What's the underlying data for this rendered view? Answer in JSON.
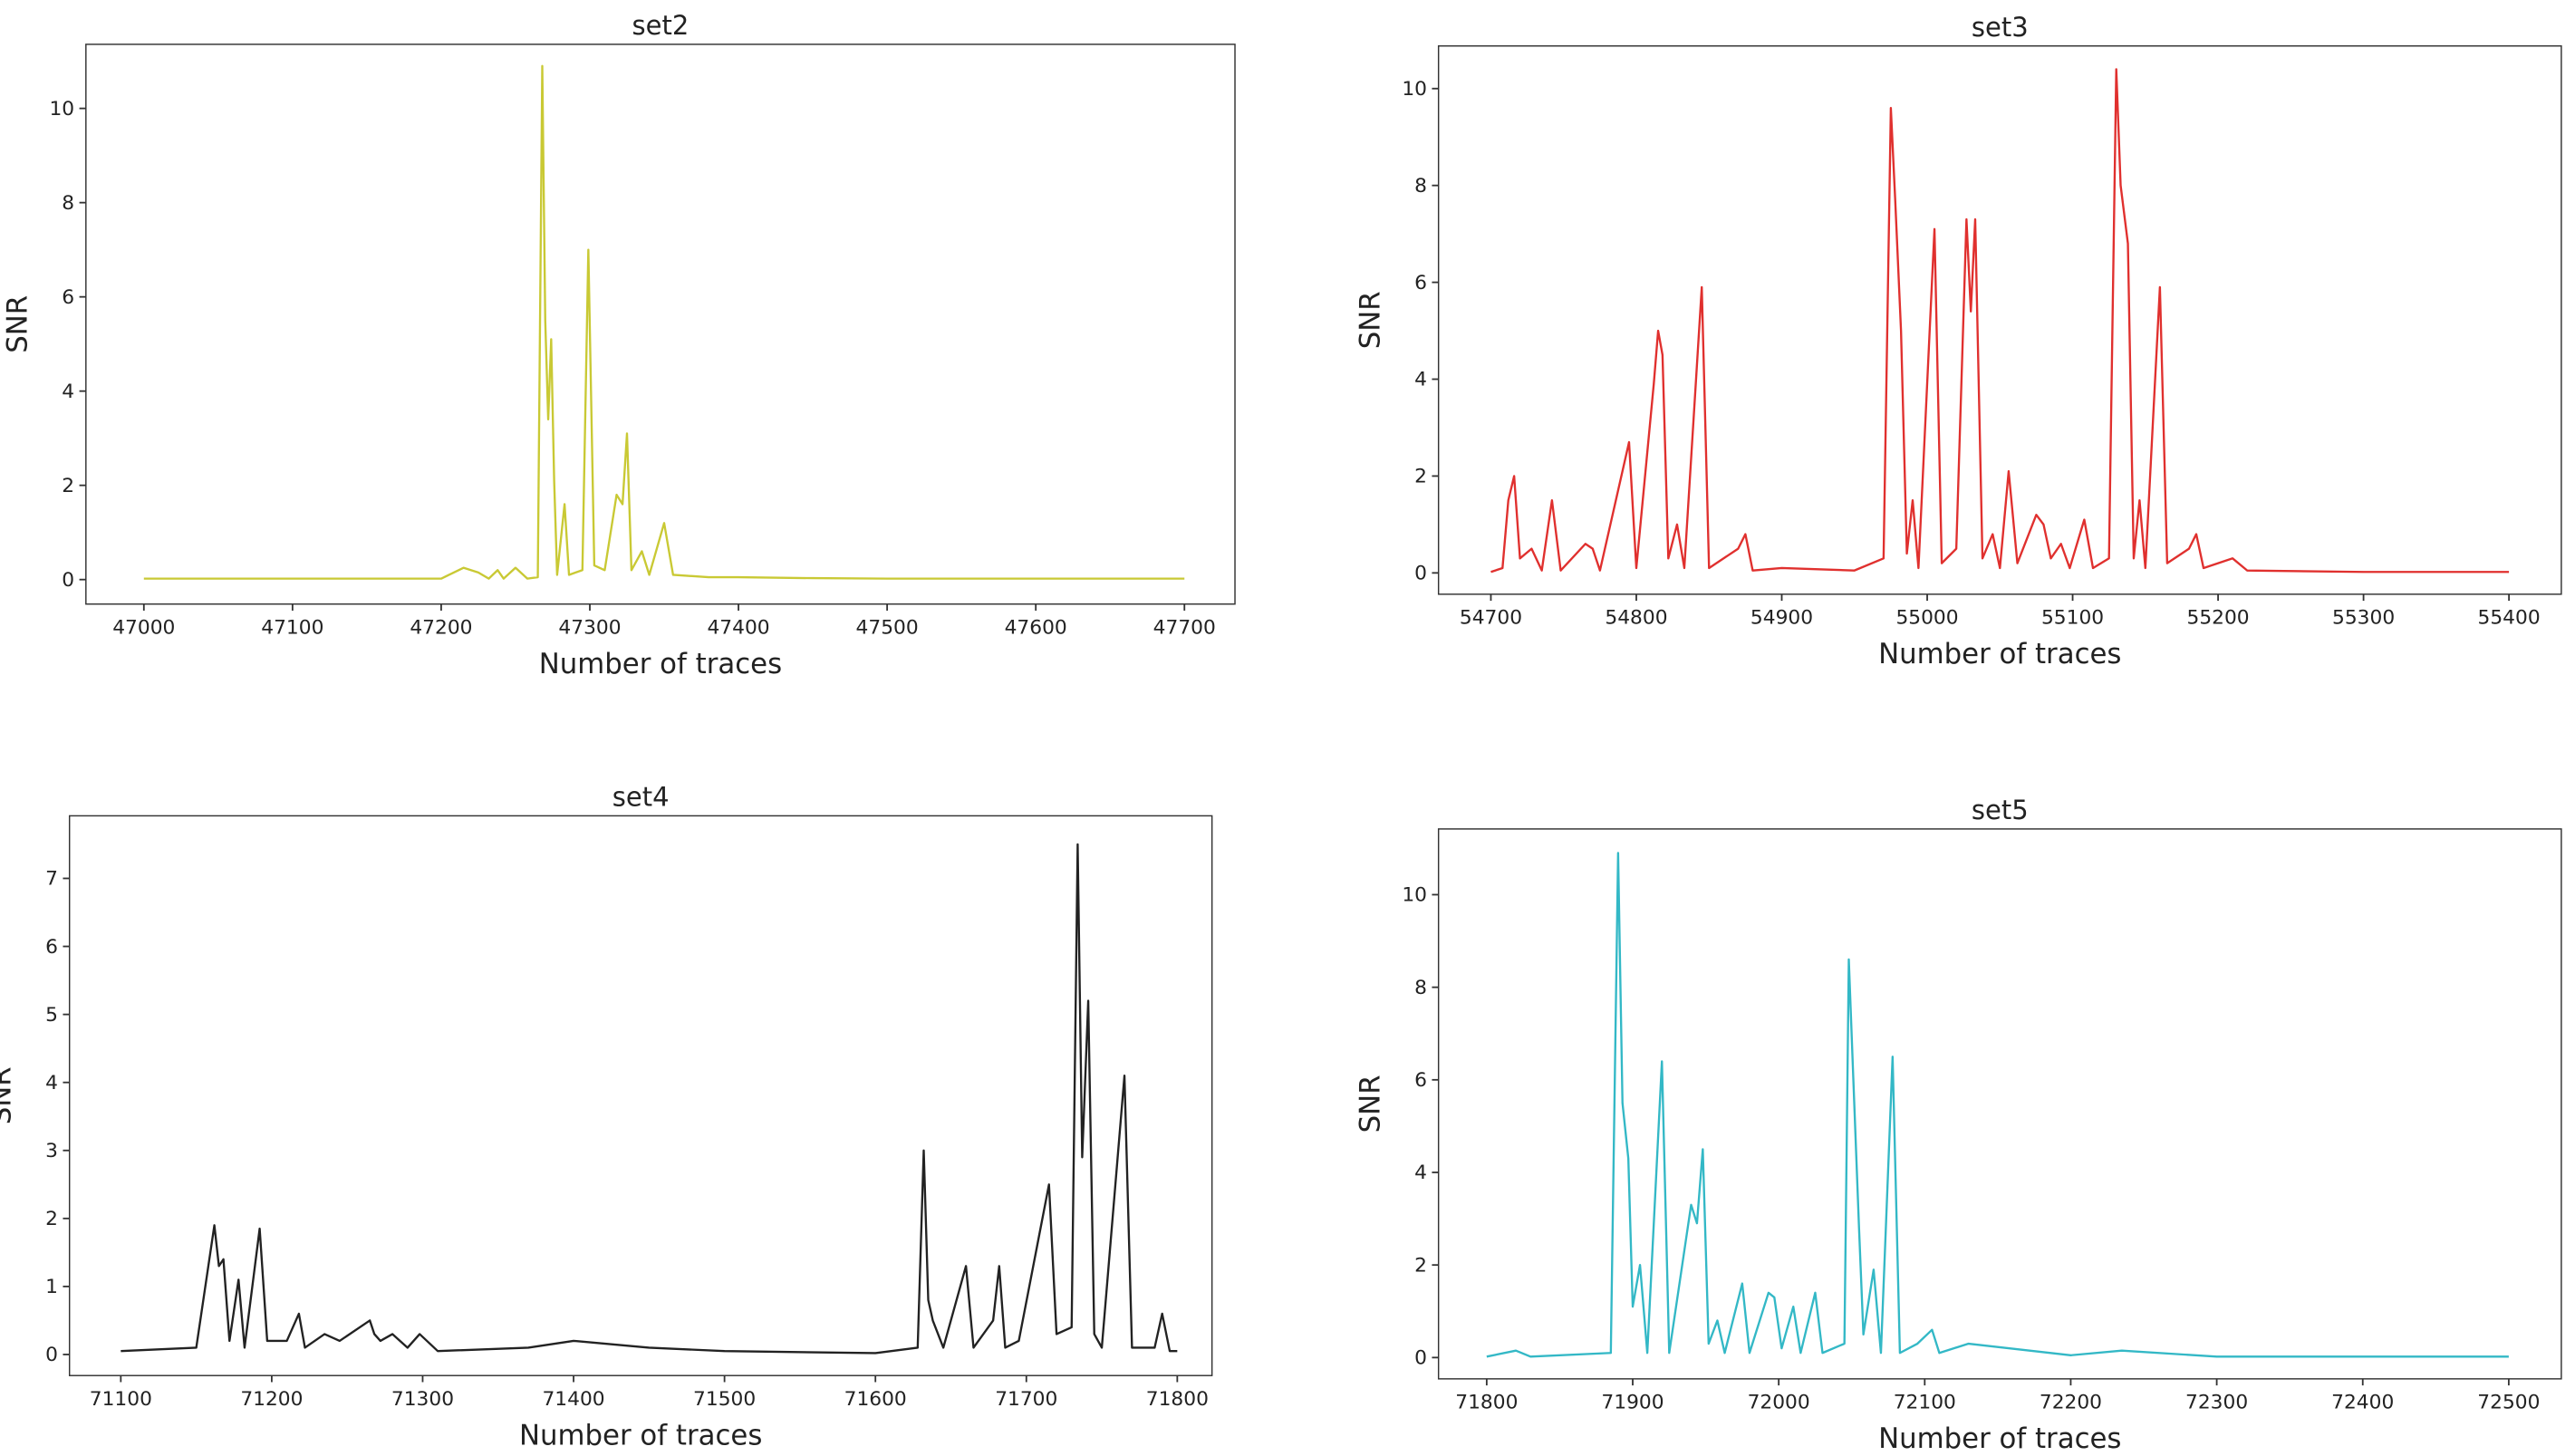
{
  "chart_data": [
    {
      "type": "line",
      "title": "set2",
      "xlabel": "Number of traces",
      "ylabel": "SNR",
      "color": "#c9c934",
      "xlim": [
        46961,
        47734
      ],
      "ylim": [
        -0.52,
        11.36
      ],
      "xticks": [
        47000,
        47100,
        47200,
        47300,
        47400,
        47500,
        47600,
        47700
      ],
      "yticks": [
        0,
        2,
        4,
        6,
        8,
        10
      ],
      "x": [
        47000,
        47200,
        47215,
        47225,
        47232,
        47238,
        47242,
        47250,
        47258,
        47265,
        47268,
        47270,
        47272,
        47274,
        47276,
        47278,
        47283,
        47286,
        47295,
        47299,
        47303,
        47310,
        47318,
        47322,
        47325,
        47328,
        47335,
        47340,
        47350,
        47356,
        47380,
        47400,
        47450,
        47500,
        47600,
        47700
      ],
      "values": [
        0.02,
        0.02,
        0.25,
        0.15,
        0.02,
        0.2,
        0.02,
        0.25,
        0.02,
        0.05,
        10.9,
        5.5,
        3.4,
        5.1,
        2.1,
        0.1,
        1.6,
        0.1,
        0.2,
        7.0,
        0.3,
        0.2,
        1.8,
        1.6,
        3.1,
        0.2,
        0.6,
        0.1,
        1.2,
        0.1,
        0.05,
        0.05,
        0.03,
        0.02,
        0.02,
        0.02
      ]
    },
    {
      "type": "line",
      "title": "set3",
      "xlabel": "Number of traces",
      "ylabel": "SNR",
      "color": "#e0302e",
      "xlim": [
        54664,
        55436
      ],
      "ylim": [
        -0.44,
        10.88
      ],
      "xticks": [
        54700,
        54800,
        54900,
        55000,
        55100,
        55200,
        55300,
        55400
      ],
      "yticks": [
        0,
        2,
        4,
        6,
        8,
        10
      ],
      "x": [
        54700,
        54708,
        54712,
        54716,
        54720,
        54728,
        54735,
        54742,
        54748,
        54765,
        54770,
        54775,
        54795,
        54800,
        54812,
        54815,
        54818,
        54822,
        54828,
        54833,
        54845,
        54850,
        54870,
        54875,
        54880,
        54900,
        54950,
        54970,
        54975,
        54978,
        54982,
        54986,
        54990,
        54994,
        55005,
        55010,
        55020,
        55027,
        55030,
        55033,
        55038,
        55045,
        55050,
        55056,
        55062,
        55075,
        55080,
        55085,
        55092,
        55098,
        55108,
        55114,
        55125,
        55130,
        55133,
        55138,
        55142,
        55146,
        55150,
        55160,
        55165,
        55180,
        55185,
        55190,
        55210,
        55220,
        55300,
        55400
      ],
      "values": [
        0.02,
        0.1,
        1.5,
        2.0,
        0.3,
        0.5,
        0.05,
        1.5,
        0.05,
        0.6,
        0.5,
        0.05,
        2.7,
        0.1,
        3.9,
        5.0,
        4.5,
        0.3,
        1.0,
        0.1,
        5.9,
        0.1,
        0.5,
        0.8,
        0.05,
        0.1,
        0.05,
        0.3,
        9.6,
        7.7,
        5.0,
        0.4,
        1.5,
        0.1,
        7.1,
        0.2,
        0.5,
        7.3,
        5.4,
        7.3,
        0.3,
        0.8,
        0.1,
        2.1,
        0.2,
        1.2,
        1.0,
        0.3,
        0.6,
        0.1,
        1.1,
        0.1,
        0.3,
        10.4,
        8.0,
        6.8,
        0.3,
        1.5,
        0.1,
        5.9,
        0.2,
        0.5,
        0.8,
        0.1,
        0.3,
        0.05,
        0.02,
        0.02
      ]
    },
    {
      "type": "line",
      "title": "set4",
      "xlabel": "Number of traces",
      "ylabel": "SNR",
      "color": "#222222",
      "xlim": [
        71066,
        71823
      ],
      "ylim": [
        -0.31,
        7.92
      ],
      "xticks": [
        71100,
        71200,
        71300,
        71400,
        71500,
        71600,
        71700,
        71800
      ],
      "yticks": [
        0,
        1,
        2,
        3,
        4,
        5,
        6,
        7
      ],
      "x": [
        71100,
        71150,
        71162,
        71165,
        71168,
        71172,
        71178,
        71182,
        71192,
        71197,
        71210,
        71218,
        71222,
        71235,
        71245,
        71265,
        71268,
        71272,
        71280,
        71290,
        71298,
        71310,
        71370,
        71400,
        71450,
        71500,
        71600,
        71628,
        71632,
        71635,
        71638,
        71645,
        71660,
        71665,
        71678,
        71682,
        71686,
        71695,
        71715,
        71720,
        71730,
        71734,
        71737,
        71741,
        71745,
        71750,
        71765,
        71770,
        71785,
        71790,
        71795,
        71800
      ],
      "values": [
        0.05,
        0.1,
        1.9,
        1.3,
        1.4,
        0.2,
        1.1,
        0.1,
        1.85,
        0.2,
        0.2,
        0.6,
        0.1,
        0.3,
        0.2,
        0.5,
        0.3,
        0.2,
        0.3,
        0.1,
        0.3,
        0.05,
        0.1,
        0.2,
        0.1,
        0.05,
        0.02,
        0.1,
        3.0,
        0.8,
        0.5,
        0.1,
        1.3,
        0.1,
        0.5,
        1.3,
        0.1,
        0.2,
        2.5,
        0.3,
        0.4,
        7.5,
        2.9,
        5.2,
        0.3,
        0.1,
        4.1,
        0.1,
        0.1,
        0.6,
        0.05,
        0.05
      ]
    },
    {
      "type": "line",
      "title": "set5",
      "xlabel": "Number of traces",
      "ylabel": "SNR",
      "color": "#33b8c6",
      "xlim": [
        71767,
        72536
      ],
      "ylim": [
        -0.46,
        11.42
      ],
      "xticks": [
        71800,
        71900,
        72000,
        72100,
        72200,
        72300,
        72400,
        72500
      ],
      "yticks": [
        0,
        2,
        4,
        6,
        8,
        10
      ],
      "x": [
        71800,
        71820,
        71830,
        71885,
        71890,
        71893,
        71897,
        71900,
        71905,
        71910,
        71920,
        71925,
        71940,
        71944,
        71948,
        71952,
        71958,
        71963,
        71975,
        71980,
        71993,
        71997,
        72002,
        72010,
        72015,
        72025,
        72030,
        72045,
        72048,
        72051,
        72055,
        72058,
        72065,
        72070,
        72078,
        72083,
        72095,
        72105,
        72110,
        72130,
        72200,
        72235,
        72300,
        72500
      ],
      "values": [
        0.02,
        0.15,
        0.02,
        0.1,
        10.9,
        5.5,
        4.3,
        1.1,
        2.0,
        0.1,
        6.4,
        0.1,
        3.3,
        2.9,
        4.5,
        0.3,
        0.8,
        0.1,
        1.6,
        0.1,
        1.4,
        1.3,
        0.2,
        1.1,
        0.1,
        1.4,
        0.1,
        0.3,
        8.6,
        6.1,
        2.8,
        0.5,
        1.9,
        0.1,
        6.5,
        0.1,
        0.3,
        0.6,
        0.1,
        0.3,
        0.05,
        0.15,
        0.02,
        0.02
      ]
    }
  ]
}
